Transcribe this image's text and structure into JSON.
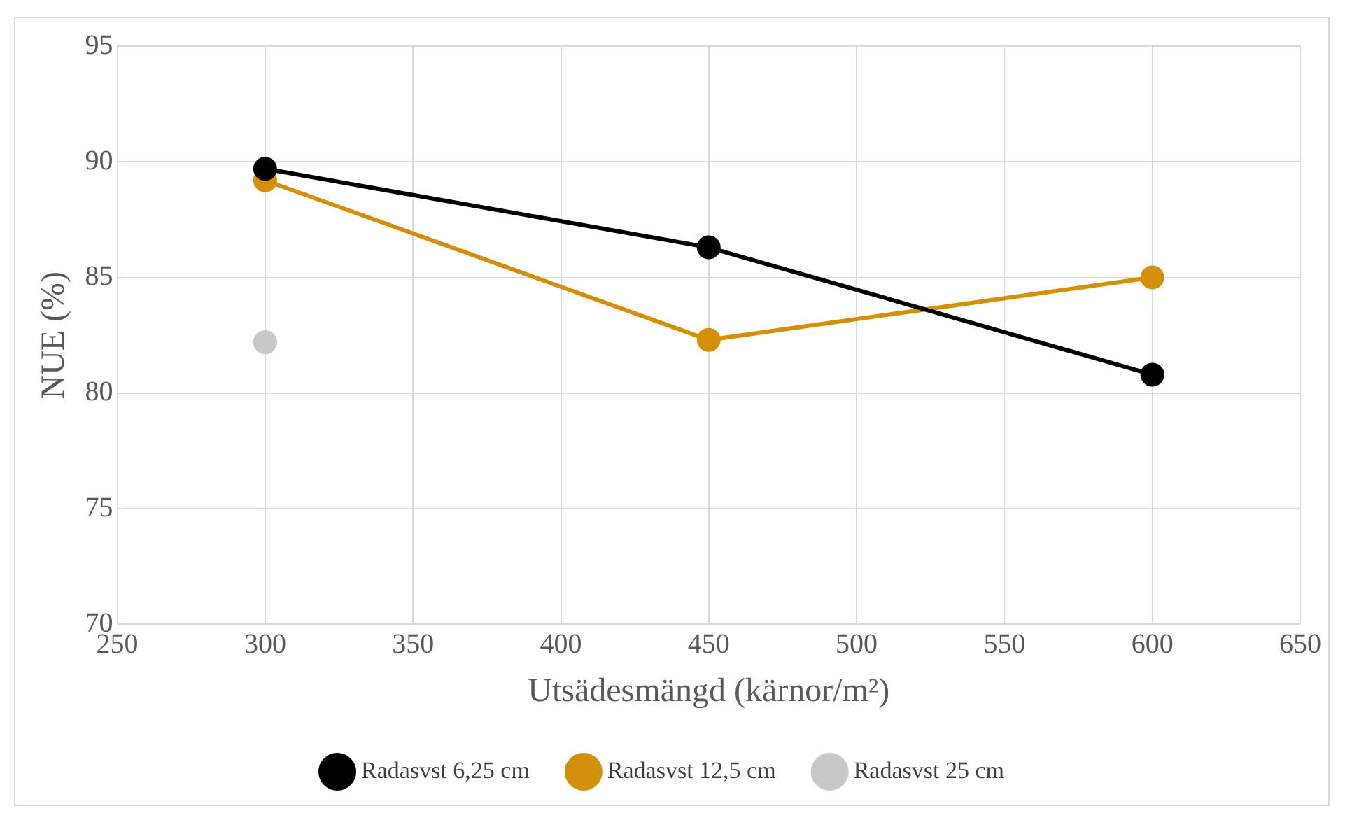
{
  "chart_data": {
    "type": "line",
    "xlabel": "Utsädesmängd (kärnor/m²)",
    "ylabel": "NUE (%)",
    "x": [
      300,
      450,
      600
    ],
    "series": [
      {
        "name": "Radasvst 6,25 cm",
        "color": "#000000",
        "values": [
          89.7,
          86.3,
          80.8
        ]
      },
      {
        "name": "Radasvst 12,5 cm",
        "color": "#d4900a",
        "values": [
          89.2,
          82.3,
          85.0
        ]
      },
      {
        "name": "Radasvst 25 cm",
        "color": "#c8c8c8",
        "values": [
          82.2,
          null,
          null
        ]
      }
    ],
    "xlim": [
      250,
      650
    ],
    "xticks": [
      250,
      300,
      350,
      400,
      450,
      500,
      550,
      600,
      650
    ],
    "ylim": [
      70,
      95
    ],
    "yticks": [
      70,
      75,
      80,
      85,
      90,
      95
    ],
    "grid": true,
    "legend": "bottom",
    "marker": "circle",
    "line_style": "solid"
  }
}
